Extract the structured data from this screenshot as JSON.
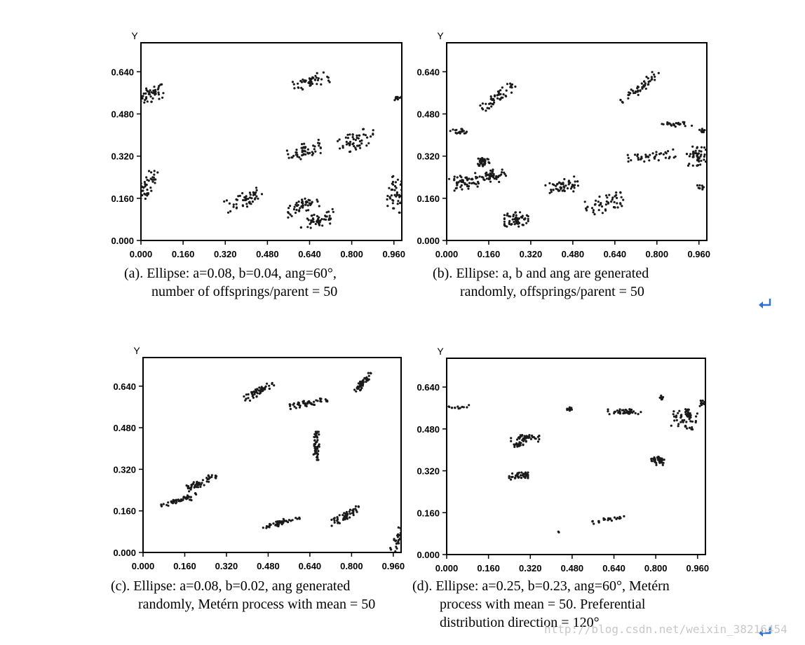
{
  "chart_data": [
    {
      "type": "scatter",
      "panel": "a",
      "ylabel": "Y",
      "xlim": [
        0,
        0.99
      ],
      "ylim": [
        0,
        0.75
      ],
      "xticks": [
        "0.000",
        "0.160",
        "0.320",
        "0.480",
        "0.640",
        "0.800",
        "0.960"
      ],
      "yticks": [
        "0.000",
        "0.160",
        "0.320",
        "0.480",
        "0.640"
      ],
      "clusters": [
        {
          "cx": 0.04,
          "cy": 0.555,
          "a": 0.06,
          "b": 0.03,
          "ang": 20,
          "n": 50
        },
        {
          "cx": 0.02,
          "cy": 0.2,
          "a": 0.08,
          "b": 0.03,
          "ang": 60,
          "n": 50
        },
        {
          "cx": 0.39,
          "cy": 0.155,
          "a": 0.08,
          "b": 0.035,
          "ang": 20,
          "n": 50
        },
        {
          "cx": 0.645,
          "cy": 0.605,
          "a": 0.075,
          "b": 0.025,
          "ang": 15,
          "n": 50
        },
        {
          "cx": 0.62,
          "cy": 0.34,
          "a": 0.07,
          "b": 0.03,
          "ang": 15,
          "n": 50
        },
        {
          "cx": 0.82,
          "cy": 0.38,
          "a": 0.08,
          "b": 0.035,
          "ang": 20,
          "n": 50
        },
        {
          "cx": 0.61,
          "cy": 0.13,
          "a": 0.07,
          "b": 0.025,
          "ang": 20,
          "n": 50
        },
        {
          "cx": 0.675,
          "cy": 0.075,
          "a": 0.08,
          "b": 0.03,
          "ang": 20,
          "n": 50
        },
        {
          "cx": 0.975,
          "cy": 0.18,
          "a": 0.08,
          "b": 0.04,
          "ang": 80,
          "n": 50
        },
        {
          "cx": 0.975,
          "cy": 0.54,
          "a": 0.015,
          "b": 0.015,
          "ang": 0,
          "n": 10
        }
      ]
    },
    {
      "type": "scatter",
      "panel": "b",
      "ylabel": "Y",
      "xlim": [
        0,
        0.99
      ],
      "ylim": [
        0,
        0.75
      ],
      "xticks": [
        "0.000",
        "0.160",
        "0.320",
        "0.480",
        "0.640",
        "0.800",
        "0.960"
      ],
      "yticks": [
        "0.000",
        "0.160",
        "0.320",
        "0.480",
        "0.640"
      ],
      "clusters": [
        {
          "cx": 0.2,
          "cy": 0.55,
          "a": 0.09,
          "b": 0.02,
          "ang": 35,
          "n": 50
        },
        {
          "cx": 0.05,
          "cy": 0.415,
          "a": 0.04,
          "b": 0.01,
          "ang": 0,
          "n": 20
        },
        {
          "cx": 0.06,
          "cy": 0.22,
          "a": 0.06,
          "b": 0.03,
          "ang": 10,
          "n": 50
        },
        {
          "cx": 0.17,
          "cy": 0.24,
          "a": 0.06,
          "b": 0.03,
          "ang": 20,
          "n": 50
        },
        {
          "cx": 0.14,
          "cy": 0.3,
          "a": 0.025,
          "b": 0.02,
          "ang": 0,
          "n": 40
        },
        {
          "cx": 0.265,
          "cy": 0.08,
          "a": 0.05,
          "b": 0.03,
          "ang": 0,
          "n": 60
        },
        {
          "cx": 0.43,
          "cy": 0.2,
          "a": 0.08,
          "b": 0.03,
          "ang": 15,
          "n": 50
        },
        {
          "cx": 0.6,
          "cy": 0.14,
          "a": 0.08,
          "b": 0.035,
          "ang": 20,
          "n": 50
        },
        {
          "cx": 0.74,
          "cy": 0.58,
          "a": 0.1,
          "b": 0.02,
          "ang": 40,
          "n": 50
        },
        {
          "cx": 0.87,
          "cy": 0.44,
          "a": 0.07,
          "b": 0.01,
          "ang": 0,
          "n": 25
        },
        {
          "cx": 0.78,
          "cy": 0.32,
          "a": 0.1,
          "b": 0.02,
          "ang": 5,
          "n": 40
        },
        {
          "cx": 0.95,
          "cy": 0.32,
          "a": 0.04,
          "b": 0.04,
          "ang": 0,
          "n": 50
        },
        {
          "cx": 0.975,
          "cy": 0.42,
          "a": 0.015,
          "b": 0.01,
          "ang": 0,
          "n": 10
        },
        {
          "cx": 0.97,
          "cy": 0.2,
          "a": 0.02,
          "b": 0.01,
          "ang": 0,
          "n": 8
        }
      ]
    },
    {
      "type": "scatter",
      "panel": "c",
      "ylabel": "Y",
      "xlim": [
        0,
        0.99
      ],
      "ylim": [
        0,
        0.75
      ],
      "xticks": [
        "0.000",
        "0.160",
        "0.320",
        "0.480",
        "0.640",
        "0.800",
        "0.960"
      ],
      "yticks": [
        "0.000",
        "0.160",
        "0.320",
        "0.480",
        "0.640"
      ],
      "clusters": [
        {
          "cx": 0.445,
          "cy": 0.62,
          "a": 0.07,
          "b": 0.015,
          "ang": 30,
          "n": 50
        },
        {
          "cx": 0.635,
          "cy": 0.575,
          "a": 0.08,
          "b": 0.012,
          "ang": 10,
          "n": 50
        },
        {
          "cx": 0.845,
          "cy": 0.655,
          "a": 0.05,
          "b": 0.012,
          "ang": 50,
          "n": 50
        },
        {
          "cx": 0.665,
          "cy": 0.41,
          "a": 0.06,
          "b": 0.012,
          "ang": 90,
          "n": 50
        },
        {
          "cx": 0.215,
          "cy": 0.265,
          "a": 0.08,
          "b": 0.015,
          "ang": 25,
          "n": 50
        },
        {
          "cx": 0.14,
          "cy": 0.2,
          "a": 0.08,
          "b": 0.012,
          "ang": 15,
          "n": 50
        },
        {
          "cx": 0.53,
          "cy": 0.115,
          "a": 0.08,
          "b": 0.012,
          "ang": 15,
          "n": 50
        },
        {
          "cx": 0.775,
          "cy": 0.14,
          "a": 0.07,
          "b": 0.015,
          "ang": 30,
          "n": 50
        },
        {
          "cx": 0.975,
          "cy": 0.05,
          "a": 0.05,
          "b": 0.015,
          "ang": 70,
          "n": 30
        }
      ]
    },
    {
      "type": "scatter",
      "panel": "d",
      "ylabel": "Y",
      "xlim": [
        0,
        0.99
      ],
      "ylim": [
        0,
        0.75
      ],
      "xticks": [
        "0.000",
        "0.160",
        "0.320",
        "0.480",
        "0.640",
        "0.800",
        "0.960"
      ],
      "yticks": [
        "0.000",
        "0.160",
        "0.320",
        "0.480",
        "0.640"
      ],
      "clusters": [
        {
          "cx": 0.04,
          "cy": 0.565,
          "a": 0.05,
          "b": 0.01,
          "ang": 0,
          "n": 15
        },
        {
          "cx": 0.3,
          "cy": 0.445,
          "a": 0.06,
          "b": 0.015,
          "ang": 0,
          "n": 40
        },
        {
          "cx": 0.27,
          "cy": 0.42,
          "a": 0.025,
          "b": 0.01,
          "ang": 0,
          "n": 20
        },
        {
          "cx": 0.275,
          "cy": 0.3,
          "a": 0.04,
          "b": 0.015,
          "ang": 0,
          "n": 40
        },
        {
          "cx": 0.47,
          "cy": 0.555,
          "a": 0.01,
          "b": 0.008,
          "ang": 0,
          "n": 12
        },
        {
          "cx": 0.68,
          "cy": 0.545,
          "a": 0.07,
          "b": 0.012,
          "ang": 0,
          "n": 40
        },
        {
          "cx": 0.825,
          "cy": 0.6,
          "a": 0.01,
          "b": 0.008,
          "ang": 0,
          "n": 10
        },
        {
          "cx": 0.91,
          "cy": 0.52,
          "a": 0.04,
          "b": 0.05,
          "ang": 80,
          "n": 60
        },
        {
          "cx": 0.81,
          "cy": 0.36,
          "a": 0.03,
          "b": 0.02,
          "ang": 0,
          "n": 40
        },
        {
          "cx": 0.98,
          "cy": 0.58,
          "a": 0.02,
          "b": 0.015,
          "ang": 0,
          "n": 15
        },
        {
          "cx": 0.62,
          "cy": 0.135,
          "a": 0.07,
          "b": 0.008,
          "ang": 10,
          "n": 25
        },
        {
          "cx": 0.43,
          "cy": 0.085,
          "a": 0.003,
          "b": 0.003,
          "ang": 0,
          "n": 2
        }
      ]
    }
  ],
  "captions": {
    "a": {
      "line1": "(a). Ellipse: a=0.08, b=0.04, ang=60°,",
      "line2": "number of offsprings/parent = 50"
    },
    "b": {
      "line1": "(b). Ellipse: a, b and ang are generated",
      "line2": "randomly, offsprings/parent = 50"
    },
    "c": {
      "line1": "(c). Ellipse: a=0.08, b=0.02, ang generated",
      "line2": "randomly, Metérn process with mean = 50"
    },
    "d": {
      "line1": "(d). Ellipse: a=0.25, b=0.23, ang=60°, Metérn",
      "line2": "process with mean = 50. Preferential",
      "line3": "distribution direction = 120°"
    }
  },
  "watermark": "http://blog.csdn.net/weixin_38216454",
  "icons": {
    "paragraph_mark": "return-arrow-icon"
  },
  "colors": {
    "points": "#1a1a1a",
    "enter_icon": "#2b72d8"
  }
}
